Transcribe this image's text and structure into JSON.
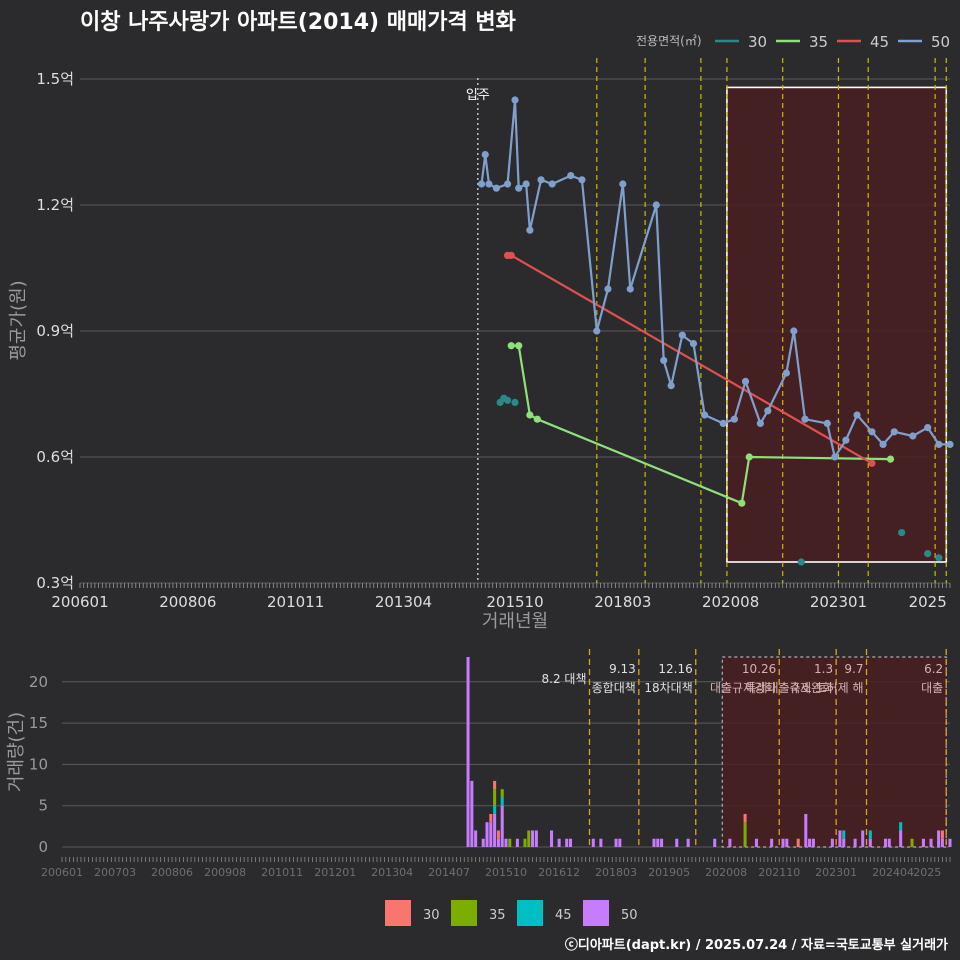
{
  "title": "이창 나주사랑가 아파트(2014) 매매가격 변화",
  "footer": "ⓒ디아파트(dapt.kr) / 2025.07.24 / 자료=국토교통부 실거래가",
  "legend_title": "전용면적(㎡)",
  "colors": {
    "background": "#2b2b2d",
    "s30": "#2a8a8a",
    "s35": "#8fe07a",
    "s45": "#e05050",
    "s50": "#7f9fcc",
    "bar30": "#f8766d",
    "bar35": "#7cae00",
    "bar45": "#00bfc4",
    "bar50": "#c77cff",
    "event_line": "#d4b800",
    "highlight_fill": "#4a1f22"
  },
  "chart_data": [
    {
      "type": "line",
      "title": "이창 나주사랑가 아파트(2014) 매매가격 변화",
      "xlabel": "거래년월",
      "ylabel": "평균가(원)",
      "xlim": [
        "2006-01",
        "2025-07"
      ],
      "ylim": [
        0.3,
        1.55
      ],
      "y_unit": "억",
      "x_ticks": [
        "200601",
        "200806",
        "201011",
        "201304",
        "201510",
        "201803",
        "202008",
        "202301",
        "2025"
      ],
      "y_ticks": [
        "0.3억",
        "0.6억",
        "0.9억",
        "1.2억",
        "1.5억"
      ],
      "grid": true,
      "legend_position": "top-right",
      "move_in_label": "입주",
      "move_in_date": "2014-12",
      "event_dates": [
        "2017-08",
        "2018-09",
        "2019-12",
        "2020-07",
        "2021-10",
        "2023-01",
        "2023-09",
        "2025-03",
        "2025-06"
      ],
      "highlight_range": [
        "2020-07",
        "2025-06",
        "0.35",
        "1.48"
      ],
      "series": [
        {
          "name": "30",
          "points": [
            [
              "2015-06",
              0.73
            ],
            [
              "2015-07",
              0.74
            ],
            [
              "2015-08",
              0.735
            ],
            [
              "2015-10",
              0.73
            ],
            [
              "2022-03",
              0.35
            ],
            [
              "2024-06",
              0.42
            ],
            [
              "2025-01",
              0.37
            ],
            [
              "2025-04",
              0.36
            ]
          ]
        },
        {
          "name": "35",
          "points": [
            [
              "2015-09",
              0.865
            ],
            [
              "2015-11",
              0.865
            ],
            [
              "2016-02",
              0.7
            ],
            [
              "2016-04",
              0.69
            ],
            [
              "2020-11",
              0.49
            ],
            [
              "2021-01",
              0.6
            ],
            [
              "2024-03",
              0.595
            ]
          ]
        },
        {
          "name": "45",
          "points": [
            [
              "2015-08",
              1.08
            ],
            [
              "2015-09",
              1.08
            ],
            [
              "2023-10",
              0.585
            ]
          ]
        },
        {
          "name": "50",
          "points": [
            [
              "2015-01",
              1.25
            ],
            [
              "2015-02",
              1.32
            ],
            [
              "2015-03",
              1.25
            ],
            [
              "2015-05",
              1.24
            ],
            [
              "2015-08",
              1.25
            ],
            [
              "2015-10",
              1.45
            ],
            [
              "2015-11",
              1.24
            ],
            [
              "2016-01",
              1.25
            ],
            [
              "2016-02",
              1.14
            ],
            [
              "2016-05",
              1.26
            ],
            [
              "2016-08",
              1.25
            ],
            [
              "2017-01",
              1.27
            ],
            [
              "2017-04",
              1.26
            ],
            [
              "2017-08",
              0.9
            ],
            [
              "2017-11",
              1.0
            ],
            [
              "2018-03",
              1.25
            ],
            [
              "2018-05",
              1.0
            ],
            [
              "2018-12",
              1.2
            ],
            [
              "2019-02",
              0.83
            ],
            [
              "2019-04",
              0.77
            ],
            [
              "2019-07",
              0.89
            ],
            [
              "2019-10",
              0.87
            ],
            [
              "2020-01",
              0.7
            ],
            [
              "2020-06",
              0.68
            ],
            [
              "2020-09",
              0.69
            ],
            [
              "2020-12",
              0.78
            ],
            [
              "2021-04",
              0.68
            ],
            [
              "2021-06",
              0.71
            ],
            [
              "2021-11",
              0.8
            ],
            [
              "2022-01",
              0.9
            ],
            [
              "2022-04",
              0.69
            ],
            [
              "2022-10",
              0.68
            ],
            [
              "2022-12",
              0.6
            ],
            [
              "2023-03",
              0.64
            ],
            [
              "2023-06",
              0.7
            ],
            [
              "2023-10",
              0.66
            ],
            [
              "2024-01",
              0.63
            ],
            [
              "2024-04",
              0.66
            ],
            [
              "2024-09",
              0.65
            ],
            [
              "2025-01",
              0.67
            ],
            [
              "2025-04",
              0.63
            ],
            [
              "2025-07",
              0.63
            ]
          ]
        }
      ]
    },
    {
      "type": "bar",
      "ylabel": "거래량(건)",
      "ylim": [
        0,
        23
      ],
      "y_ticks": [
        "0",
        "5",
        "10",
        "15",
        "20"
      ],
      "x_ticks": [
        "200601",
        "200703",
        "200806",
        "200908",
        "201011",
        "201201",
        "201304",
        "201407",
        "201510",
        "201612",
        "201803",
        "201905",
        "202008",
        "202110",
        "202301",
        "202404",
        "2025"
      ],
      "series_names": [
        "30",
        "35",
        "45",
        "50"
      ],
      "events": [
        {
          "date": "2017-08",
          "label1": "8.2 대책",
          "label2": ""
        },
        {
          "date": "2018-09",
          "label1": "9.13",
          "label2": "종합대책"
        },
        {
          "date": "2019-12",
          "label1": "12.16",
          "label2": "18차대책"
        },
        {
          "date": "2021-10",
          "label1": "10.26",
          "label2": "대출규제강화"
        },
        {
          "date": "2023-01",
          "label1": "1.3",
          "label2": "규제완화"
        },
        {
          "date": "2023-09",
          "label1": "9.7",
          "label2": "특례대출축소 토허제 해"
        },
        {
          "date": "2025-06",
          "label1": "6.2",
          "label2": "대출"
        }
      ],
      "bars": [
        {
          "date": "2014-12",
          "50": 23
        },
        {
          "date": "2015-01",
          "50": 8
        },
        {
          "date": "2015-02",
          "50": 2
        },
        {
          "date": "2015-04",
          "50": 1
        },
        {
          "date": "2015-05",
          "50": 3
        },
        {
          "date": "2015-06",
          "30": 1,
          "50": 3
        },
        {
          "date": "2015-07",
          "30": 1,
          "35": 2,
          "45": 1,
          "50": 4
        },
        {
          "date": "2015-08",
          "30": 1,
          "50": 1
        },
        {
          "date": "2015-09",
          "35": 1,
          "45": 1,
          "50": 5
        },
        {
          "date": "2015-10",
          "50": 1
        },
        {
          "date": "2015-11",
          "35": 1
        },
        {
          "date": "2016-01",
          "50": 1
        },
        {
          "date": "2016-03",
          "35": 1
        },
        {
          "date": "2016-04",
          "35": 2
        },
        {
          "date": "2016-05",
          "50": 2
        },
        {
          "date": "2016-06",
          "50": 2
        },
        {
          "date": "2016-10",
          "50": 2
        },
        {
          "date": "2016-12",
          "50": 1
        },
        {
          "date": "2017-02",
          "50": 1
        },
        {
          "date": "2017-03",
          "50": 1
        },
        {
          "date": "2017-09",
          "50": 1
        },
        {
          "date": "2017-11",
          "50": 1
        },
        {
          "date": "2018-03",
          "50": 1
        },
        {
          "date": "2018-04",
          "50": 1
        },
        {
          "date": "2019-01",
          "50": 1
        },
        {
          "date": "2019-02",
          "50": 1
        },
        {
          "date": "2019-03",
          "50": 1
        },
        {
          "date": "2019-07",
          "50": 1
        },
        {
          "date": "2019-10",
          "50": 1
        },
        {
          "date": "2020-05",
          "50": 1
        },
        {
          "date": "2020-09",
          "50": 1
        },
        {
          "date": "2021-01",
          "30": 1,
          "35": 3
        },
        {
          "date": "2021-04",
          "50": 1
        },
        {
          "date": "2021-08",
          "50": 1
        },
        {
          "date": "2021-11",
          "50": 1
        },
        {
          "date": "2021-12",
          "50": 1
        },
        {
          "date": "2022-03",
          "30": 1
        },
        {
          "date": "2022-05",
          "50": 4
        },
        {
          "date": "2022-06",
          "50": 1
        },
        {
          "date": "2022-07",
          "50": 1
        },
        {
          "date": "2022-12",
          "50": 1
        },
        {
          "date": "2023-02",
          "50": 2
        },
        {
          "date": "2023-03",
          "45": 1,
          "50": 1
        },
        {
          "date": "2023-06",
          "50": 1
        },
        {
          "date": "2023-08",
          "50": 2
        },
        {
          "date": "2023-10",
          "45": 1,
          "50": 1
        },
        {
          "date": "2024-02",
          "50": 1
        },
        {
          "date": "2024-03",
          "50": 1
        },
        {
          "date": "2024-06",
          "45": 1,
          "50": 2
        },
        {
          "date": "2024-09",
          "35": 1
        },
        {
          "date": "2024-12",
          "50": 1
        },
        {
          "date": "2025-02",
          "50": 1
        },
        {
          "date": "2025-04",
          "50": 2
        },
        {
          "date": "2025-05",
          "30": 1,
          "50": 1
        },
        {
          "date": "2025-07",
          "50": 1
        }
      ]
    }
  ]
}
